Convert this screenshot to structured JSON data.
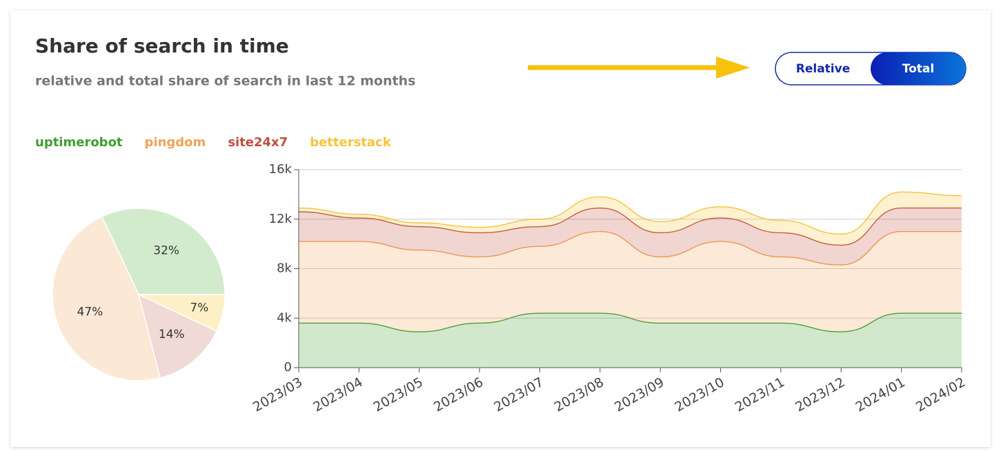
{
  "header": {
    "title": "Share of search in time",
    "subtitle": "relative and total share of search in last 12 months"
  },
  "toggle": {
    "options": [
      "Relative",
      "Total"
    ],
    "selected": "Total"
  },
  "chart_data": [
    {
      "type": "pie",
      "categories": [
        "uptimerobot",
        "betterstack",
        "site24x7",
        "pingdom"
      ],
      "values": [
        32,
        7,
        14,
        47
      ],
      "value_labels": [
        "32%",
        "7%",
        "14%",
        "47%"
      ],
      "colors": [
        "#d3ebcd",
        "#fdf0c6",
        "#f0dad6",
        "#fce9d5"
      ]
    },
    {
      "type": "area",
      "stacked": true,
      "x": [
        "2023/03",
        "2023/04",
        "2023/05",
        "2023/06",
        "2023/07",
        "2023/08",
        "2023/09",
        "2023/10",
        "2023/11",
        "2023/12",
        "2024/01",
        "2024/02"
      ],
      "series": [
        {
          "name": "uptimerobot",
          "color": "#3f9e2f",
          "values": [
            3600,
            3600,
            2900,
            3600,
            4400,
            4400,
            3600,
            3600,
            3600,
            2900,
            4400,
            4400
          ]
        },
        {
          "name": "pingdom",
          "color": "#f2a257",
          "values": [
            6600,
            6600,
            6600,
            5350,
            5400,
            6600,
            5350,
            6600,
            5350,
            5400,
            6600,
            6600
          ]
        },
        {
          "name": "site24x7",
          "color": "#c0503e",
          "values": [
            2400,
            1900,
            1900,
            1950,
            1600,
            1900,
            1950,
            1900,
            1950,
            1600,
            1900,
            1900
          ]
        },
        {
          "name": "betterstack",
          "color": "#f5c43a",
          "values": [
            300,
            300,
            300,
            450,
            600,
            900,
            900,
            900,
            1000,
            900,
            1300,
            1000
          ]
        }
      ],
      "ylim": [
        0,
        16000
      ],
      "yticks": [
        0,
        {
          "value": 4000,
          "label": "4k"
        },
        {
          "value": 8000,
          "label": "8k"
        },
        {
          "value": 12000,
          "label": "12k"
        },
        {
          "value": 16000,
          "label": "16k"
        }
      ],
      "grid": true
    }
  ]
}
